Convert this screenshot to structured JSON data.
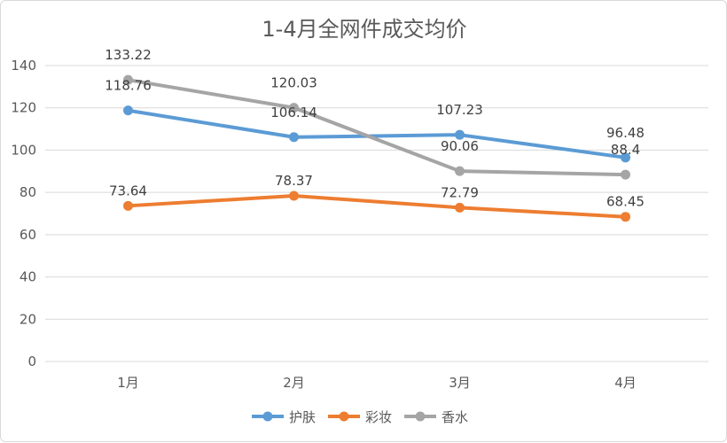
{
  "chart_data": {
    "type": "line",
    "title": "1-4月全网件成交均价",
    "categories": [
      "1月",
      "2月",
      "3月",
      "4月"
    ],
    "ylim": [
      0,
      140
    ],
    "yticks": [
      0,
      20,
      40,
      60,
      80,
      100,
      120,
      140
    ],
    "grid": true,
    "legend": "bottom",
    "series": [
      {
        "name": "护肤",
        "color": "#5b9bd5",
        "values": [
          118.76,
          106.14,
          107.23,
          96.48
        ],
        "labels": [
          "118.76",
          "106.14",
          "107.23",
          "96.48"
        ]
      },
      {
        "name": "彩妆",
        "color": "#ed7d31",
        "values": [
          73.64,
          78.37,
          72.79,
          68.45
        ],
        "labels": [
          "73.64",
          "78.37",
          "72.79",
          "68.45"
        ]
      },
      {
        "name": "香水",
        "color": "#a5a5a5",
        "values": [
          133.22,
          120.03,
          90.06,
          88.4
        ],
        "labels": [
          "133.22",
          "120.03",
          "90.06",
          "88.4"
        ]
      }
    ]
  }
}
